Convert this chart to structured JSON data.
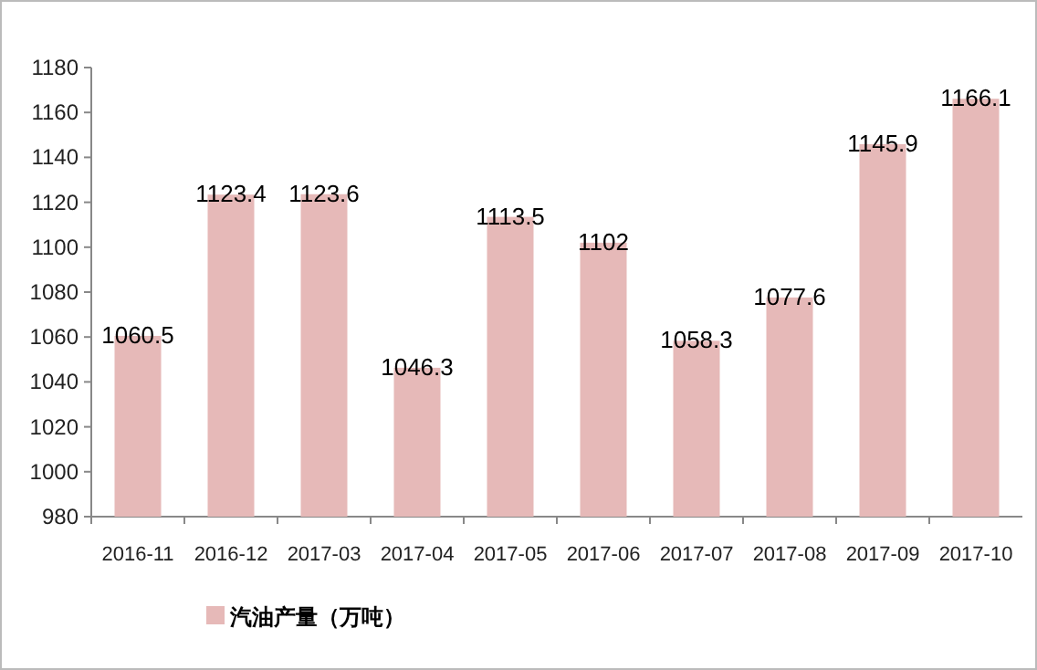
{
  "chart_data": {
    "type": "bar",
    "categories": [
      "2016-11",
      "2016-12",
      "2017-03",
      "2017-04",
      "2017-05",
      "2017-06",
      "2017-07",
      "2017-08",
      "2017-09",
      "2017-10"
    ],
    "series": [
      {
        "name": "汽油产量（万吨）",
        "color": "#e6b9b8",
        "values": [
          1060.5,
          1123.4,
          1123.6,
          1046.3,
          1113.5,
          1102,
          1058.3,
          1077.6,
          1145.9,
          1166.1
        ]
      }
    ],
    "ylim": [
      980,
      1180
    ],
    "yticks": [
      980,
      1000,
      1020,
      1040,
      1060,
      1080,
      1100,
      1120,
      1140,
      1160,
      1180
    ],
    "data_labels": true,
    "legend": "bottom left",
    "grid": false
  }
}
